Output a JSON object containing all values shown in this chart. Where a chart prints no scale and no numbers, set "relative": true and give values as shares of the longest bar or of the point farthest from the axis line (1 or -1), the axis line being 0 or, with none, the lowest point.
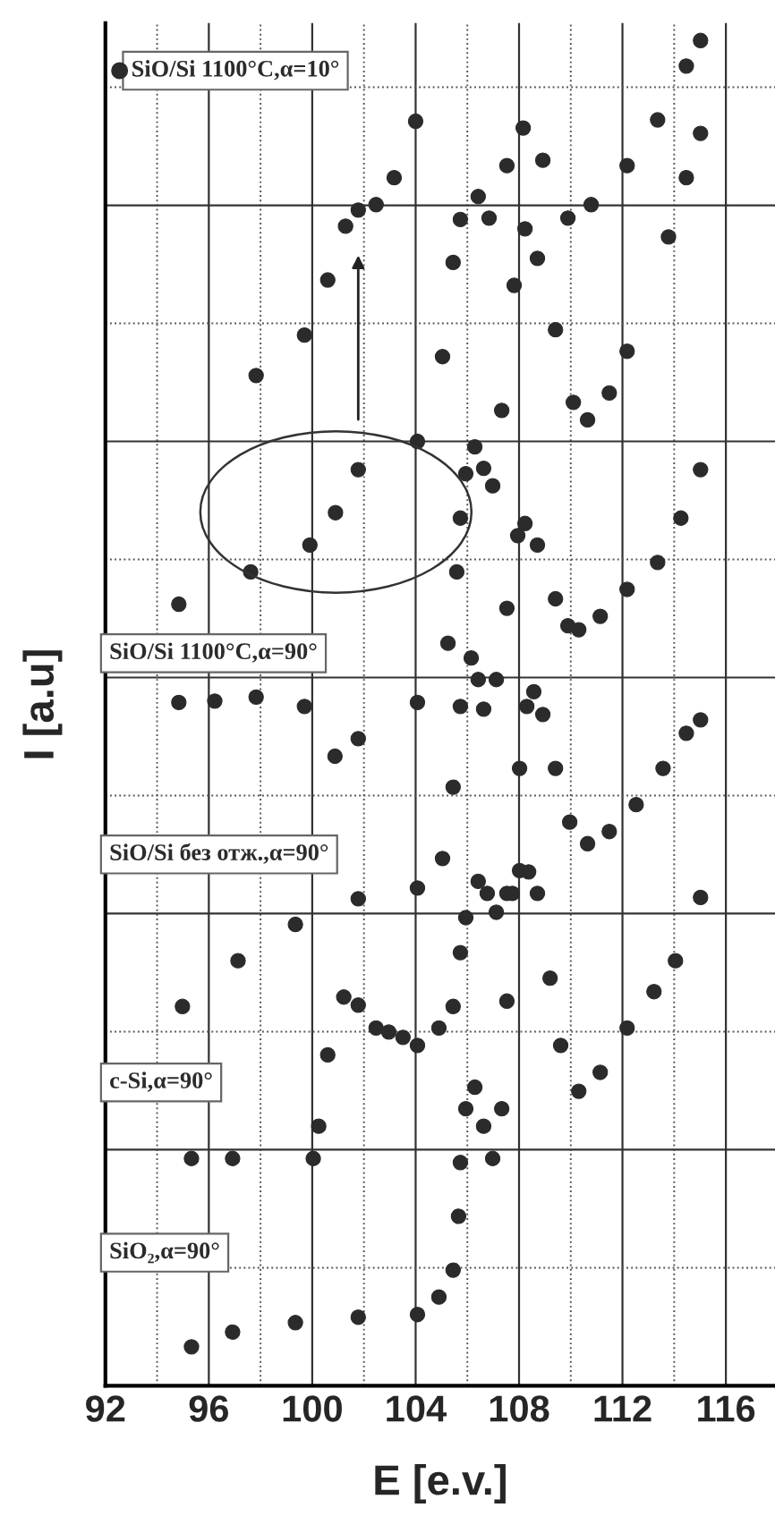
{
  "chart_data": {
    "type": "scatter",
    "relative": true,
    "xlabel": "E [e.v.]",
    "ylabel": "I [a.u]",
    "xlim": [
      92,
      117.9
    ],
    "xticks": [
      92,
      96,
      100,
      104,
      108,
      112,
      116
    ],
    "grid": true,
    "marker": "circle",
    "series": [
      {
        "name": "SiO/Si 1100°C,α=10°",
        "color": "#2b2b2b",
        "x": [
          94.84,
          97.62,
          99.91,
          100.9,
          101.78,
          104.07,
          105.04,
          105.45,
          105.73,
          106.42,
          106.84,
          107.53,
          108.16,
          108.92,
          109.89,
          110.79,
          112.18,
          113.36,
          114.47,
          115.02
        ],
        "values": [
          0.581,
          0.605,
          0.625,
          0.649,
          0.681,
          0.702,
          0.765,
          0.835,
          0.867,
          0.884,
          0.868,
          0.907,
          0.935,
          0.911,
          0.868,
          0.878,
          0.907,
          0.941,
          0.981,
          1.0
        ]
      },
      {
        "color": "#2b2b2b",
        "x": [
          97.83,
          99.7,
          100.6,
          101.29,
          101.78,
          102.47,
          103.17,
          104.0
        ],
        "values": [
          0.751,
          0.781,
          0.822,
          0.862,
          0.874,
          0.878,
          0.898,
          0.94
        ]
      },
      {
        "name": "SiO/Si 1100°C,α=90°",
        "color": "#2b2b2b",
        "x": [
          94.84,
          96.23,
          97.83,
          99.7,
          100.88,
          101.78,
          104.07,
          105.25,
          105.59,
          105.73,
          105.94,
          106.29,
          106.63,
          106.98,
          107.33,
          107.81,
          108.23,
          108.71,
          109.41,
          110.1,
          110.65,
          111.49,
          112.18,
          113.78,
          114.47,
          115.02
        ],
        "values": [
          0.508,
          0.509,
          0.512,
          0.505,
          0.468,
          0.481,
          0.508,
          0.552,
          0.605,
          0.645,
          0.678,
          0.698,
          0.682,
          0.669,
          0.725,
          0.818,
          0.86,
          0.838,
          0.785,
          0.731,
          0.718,
          0.738,
          0.769,
          0.854,
          0.898,
          0.931
        ]
      },
      {
        "name": "SiO/Si без отж.,α=90°",
        "color": "#2b2b2b",
        "x": [
          94.98,
          97.13,
          99.35,
          101.78,
          104.07,
          105.04,
          105.45,
          105.73,
          106.15,
          106.42,
          106.63,
          107.12,
          107.53,
          107.95,
          108.23,
          108.71,
          109.41,
          109.89,
          110.31,
          111.14,
          112.18,
          113.36,
          114.26,
          115.02
        ],
        "values": [
          0.282,
          0.316,
          0.343,
          0.362,
          0.37,
          0.392,
          0.445,
          0.505,
          0.541,
          0.525,
          0.503,
          0.525,
          0.578,
          0.632,
          0.641,
          0.625,
          0.585,
          0.565,
          0.562,
          0.572,
          0.592,
          0.612,
          0.645,
          0.681
        ]
      },
      {
        "name": "c-Si,α=90°",
        "color": "#2b2b2b",
        "x": [
          95.33,
          96.92,
          100.04,
          100.25,
          100.6,
          101.22,
          101.78,
          102.47,
          102.96,
          103.51,
          104.07,
          104.9,
          105.45,
          105.73,
          105.94,
          106.42,
          106.77,
          107.12,
          107.53,
          108.02,
          108.37,
          108.71,
          109.2,
          109.61,
          110.31,
          111.14,
          112.18,
          113.22,
          114.05,
          115.02
        ],
        "values": [
          0.169,
          0.169,
          0.169,
          0.193,
          0.246,
          0.289,
          0.283,
          0.266,
          0.263,
          0.259,
          0.253,
          0.266,
          0.282,
          0.322,
          0.348,
          0.375,
          0.366,
          0.352,
          0.366,
          0.383,
          0.382,
          0.366,
          0.303,
          0.253,
          0.219,
          0.233,
          0.266,
          0.293,
          0.316,
          0.363
        ]
      },
      {
        "name": "SiO₂,α=90°",
        "color": "#2b2b2b",
        "x": [
          95.33,
          96.92,
          99.35,
          101.78,
          104.07,
          104.9,
          105.45,
          105.66,
          105.73,
          105.94,
          106.29,
          106.63,
          106.98,
          107.33,
          107.53,
          107.74,
          108.02,
          108.3,
          108.57,
          108.92,
          109.41,
          109.96,
          110.65,
          111.49,
          112.53,
          113.57,
          114.47,
          115.02
        ],
        "values": [
          0.029,
          0.04,
          0.047,
          0.051,
          0.053,
          0.066,
          0.086,
          0.126,
          0.166,
          0.206,
          0.222,
          0.193,
          0.169,
          0.206,
          0.286,
          0.366,
          0.459,
          0.505,
          0.516,
          0.499,
          0.459,
          0.419,
          0.403,
          0.412,
          0.432,
          0.459,
          0.485,
          0.495
        ]
      }
    ]
  }
}
